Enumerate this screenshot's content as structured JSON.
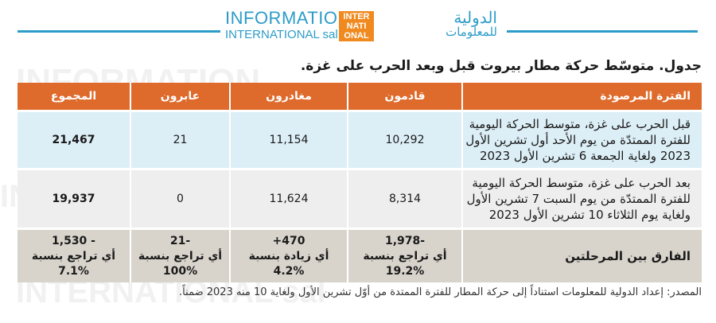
{
  "header": {
    "logo_en_line1": "INFORMATION",
    "logo_en_line2": "INTERNATIONAL sal",
    "logo_mark": "INTER NATI ONAL",
    "logo_ar_line1": "الدولية",
    "logo_ar_line2": "للمعلومات",
    "rule_color": "#2d9cc8"
  },
  "title": "جدول. متوسّط حركة مطار بيروت قبل وبعد الحرب على غزة.",
  "table": {
    "columns": [
      "الفترة المرصودة",
      "قادمون",
      "مغادرون",
      "عابرون",
      "المجموع"
    ],
    "rows": [
      {
        "period": "قبل الحرب على غزة، متوسط الحركة اليومية للفترة الممتدّة من يوم الأحد أول تشرين الأول 2023 ولغاية الجمعة 6 تشرين الأول 2023",
        "arrivals": "10,292",
        "departures": "11,154",
        "transit": "21",
        "total": "21,467"
      },
      {
        "period": "بعد الحرب على غزة، متوسط الحركة اليومية للفترة الممتدّة من يوم السبت 7 تشرين الأول ولغاية يوم الثلاثاء 10 تشرين الأول 2023",
        "arrivals": "8,314",
        "departures": "11,624",
        "transit": "0",
        "total": "19,937"
      },
      {
        "period": "الفارق بين المرحلتين",
        "arrivals": [
          "-1,978",
          "أي تراجع بنسبة",
          "19.2%"
        ],
        "departures": [
          "470+",
          "أي زيادة بنسبة",
          "4.2%"
        ],
        "transit": [
          "-21",
          "أي تراجع بنسبة",
          "100%"
        ],
        "total": [
          "- 1,530",
          "أي تراجع بنسبة",
          "7.1%"
        ]
      }
    ]
  },
  "source": "المصدر: إعداد الدولية للمعلومات استناداً إلى حركة المطار للفترة الممتدة من أوّل تشرين الأول ولغاية 10 منه 2023 ضمناً.",
  "colors": {
    "header_row": "#de6a2b",
    "row1": "#dceef6",
    "row2": "#eeeeee",
    "row3": "#d8d4cc",
    "brand_blue": "#2d9cc8",
    "brand_orange": "#f08a1f"
  }
}
